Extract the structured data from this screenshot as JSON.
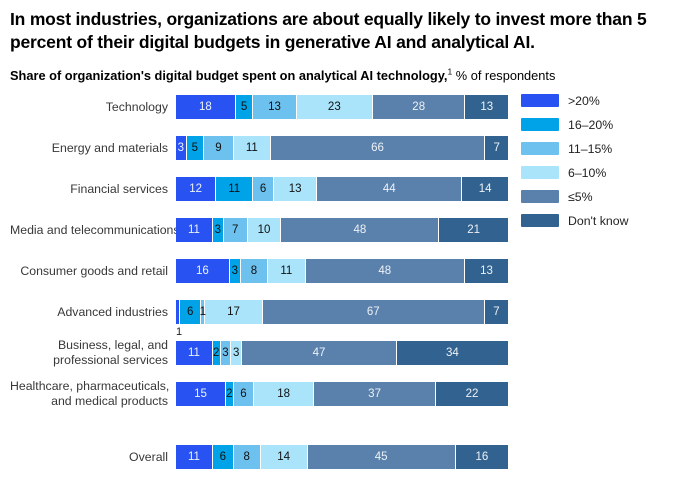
{
  "title": "In most industries, organizations are about equally likely to invest more than 5 percent of their digital budgets in generative AI and analytical AI.",
  "subtitle": {
    "bold": "Share of organization's digital budget spent on analytical AI technology,",
    "footnote_marker": "1",
    "regular": "% of respondents"
  },
  "chart_data": {
    "type": "bar",
    "orientation": "horizontal",
    "stacked": true,
    "unit": "% of respondents",
    "legend_position": "top-right",
    "value_labels": "inside",
    "categories": [
      "Technology",
      "Energy and materials",
      "Financial services",
      "Media and telecommunications",
      "Consumer goods and retail",
      "Advanced industries",
      "Business, legal, and\nprofessional services",
      "Healthcare, pharmaceuticals,\nand medical products",
      "Overall"
    ],
    "series": [
      {
        "name": ">20%",
        "color": "#2853F2",
        "text_color": "#EDF2F7",
        "values": [
          18,
          3,
          12,
          11,
          16,
          1,
          11,
          15,
          11
        ]
      },
      {
        "name": "16–20%",
        "color": "#00A3E8",
        "text_color": "#111111",
        "values": [
          5,
          5,
          11,
          3,
          3,
          6,
          2,
          2,
          6
        ]
      },
      {
        "name": "11–15%",
        "color": "#6DC1EF",
        "text_color": "#111111",
        "values": [
          13,
          9,
          6,
          7,
          8,
          1,
          3,
          6,
          8
        ]
      },
      {
        "name": "6–10%",
        "color": "#A9E4FA",
        "text_color": "#111111",
        "values": [
          23,
          11,
          13,
          10,
          11,
          17,
          3,
          18,
          14
        ]
      },
      {
        "name": "≤5%",
        "color": "#5A80AC",
        "text_color": "#EDF2F7",
        "values": [
          28,
          66,
          44,
          48,
          48,
          67,
          47,
          37,
          45
        ]
      },
      {
        "name": "Don't know",
        "color": "#32628F",
        "text_color": "#EDF2F7",
        "values": [
          13,
          7,
          14,
          21,
          13,
          7,
          34,
          22,
          16
        ]
      }
    ],
    "label_below": [
      {
        "category_index": 5,
        "series_index": 0
      }
    ],
    "overall_row_index": 8
  }
}
